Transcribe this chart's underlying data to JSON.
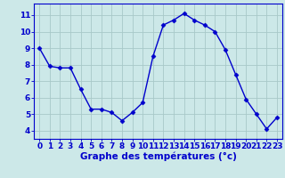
{
  "hours": [
    0,
    1,
    2,
    3,
    4,
    5,
    6,
    7,
    8,
    9,
    10,
    11,
    12,
    13,
    14,
    15,
    16,
    17,
    18,
    19,
    20,
    21,
    22,
    23
  ],
  "temps": [
    9.0,
    7.9,
    7.8,
    7.8,
    6.5,
    5.3,
    5.3,
    5.1,
    4.6,
    5.1,
    5.7,
    8.5,
    10.4,
    10.7,
    11.1,
    10.7,
    10.4,
    10.0,
    8.9,
    7.4,
    5.9,
    5.0,
    4.1,
    4.8
  ],
  "line_color": "#0000cc",
  "marker": "D",
  "marker_size": 2.5,
  "bg_color": "#cce8e8",
  "grid_color": "#a8c8c8",
  "xlabel": "Graphe des températures (°c)",
  "xlabel_color": "#0000cc",
  "xlabel_fontsize": 7.5,
  "tick_color": "#0000cc",
  "tick_fontsize": 6.5,
  "ylim": [
    3.5,
    11.7
  ],
  "yticks": [
    4,
    5,
    6,
    7,
    8,
    9,
    10,
    11
  ],
  "xticks": [
    0,
    1,
    2,
    3,
    4,
    5,
    6,
    7,
    8,
    9,
    10,
    11,
    12,
    13,
    14,
    15,
    16,
    17,
    18,
    19,
    20,
    21,
    22,
    23
  ],
  "axis_color": "#0000cc",
  "linewidth": 1.0
}
